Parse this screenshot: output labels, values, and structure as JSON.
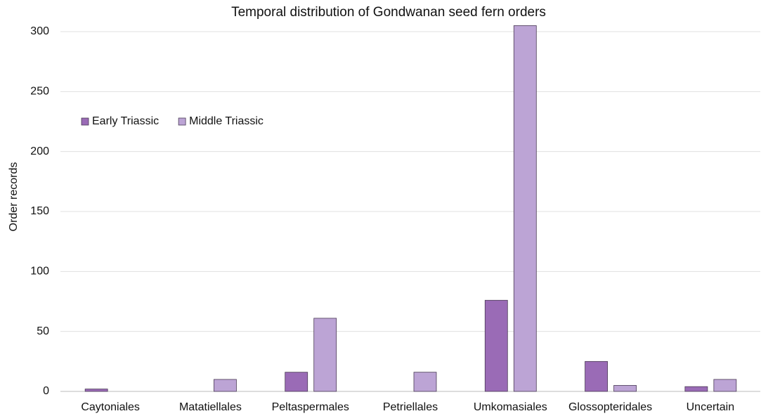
{
  "chart_data": {
    "type": "bar",
    "title": "Temporal distribution of Gondwanan seed fern orders",
    "y_label": "Order records",
    "categories": [
      "Caytoniales",
      "Matatiellales",
      "Peltaspermales",
      "Petriellales",
      "Umkomasiales",
      "Glossopteridales",
      "Uncertain"
    ],
    "series": [
      {
        "name": "Early Triassic",
        "color": "#9a6bb6",
        "values": [
          2,
          0,
          16,
          0,
          76,
          25,
          4
        ]
      },
      {
        "name": "Middle Triassic",
        "color": "#bca4d5",
        "values": [
          0,
          10,
          61,
          16,
          305,
          5,
          10
        ]
      }
    ],
    "ylim": [
      0,
      300
    ],
    "yticks": [
      0,
      50,
      100,
      150,
      200,
      250,
      300
    ],
    "grid": true,
    "legend": "upper-left"
  }
}
